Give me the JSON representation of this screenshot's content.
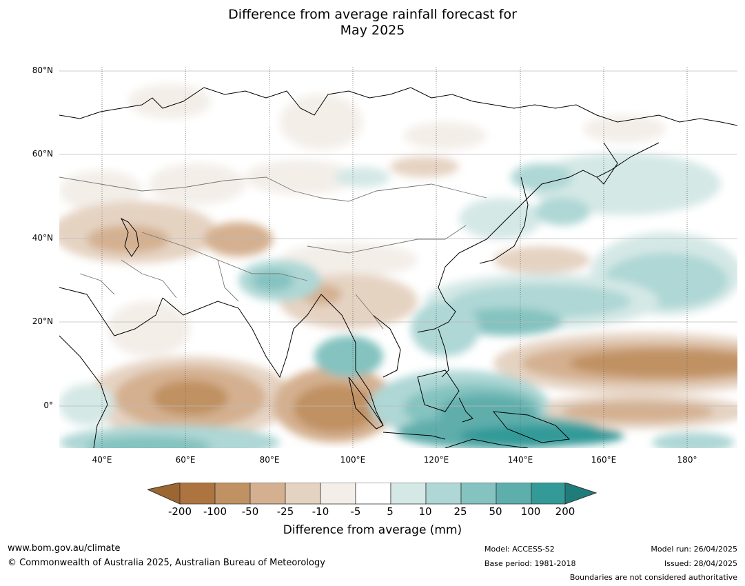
{
  "title_line1": "Difference from average rainfall forecast for",
  "title_line2": "May 2025",
  "lat_labels": [
    "80°N",
    "60°N",
    "40°N",
    "20°N",
    "0°"
  ],
  "lon_labels": [
    "40°E",
    "60°E",
    "80°E",
    "100°E",
    "120°E",
    "140°E",
    "160°E",
    "180°"
  ],
  "colorbar": {
    "labels": [
      "-200",
      "-100",
      "-50",
      "-25",
      "-10",
      "-5",
      "5",
      "10",
      "25",
      "50",
      "100",
      "200"
    ],
    "colors": [
      "#9c6630",
      "#ae7440",
      "#c09162",
      "#d4b090",
      "#e5d3c2",
      "#f3eee8",
      "#ffffff",
      "#d4e8e6",
      "#aed7d5",
      "#84c3c0",
      "#5eaeac",
      "#339a98",
      "#1e7d7b"
    ],
    "title": "Difference from average (mm)"
  },
  "footer": {
    "url": "www.bom.gov.au/climate",
    "copyright": "© Commonwealth of Australia 2025, Australian Bureau of Meteorology",
    "model": "Model: ACCESS-S2",
    "base_period": "Base period: 1981-2018",
    "model_run": "Model run: 26/04/2025",
    "issued": "Issued: 28/04/2025",
    "disclaimer": "Boundaries are not considered authoritative"
  }
}
